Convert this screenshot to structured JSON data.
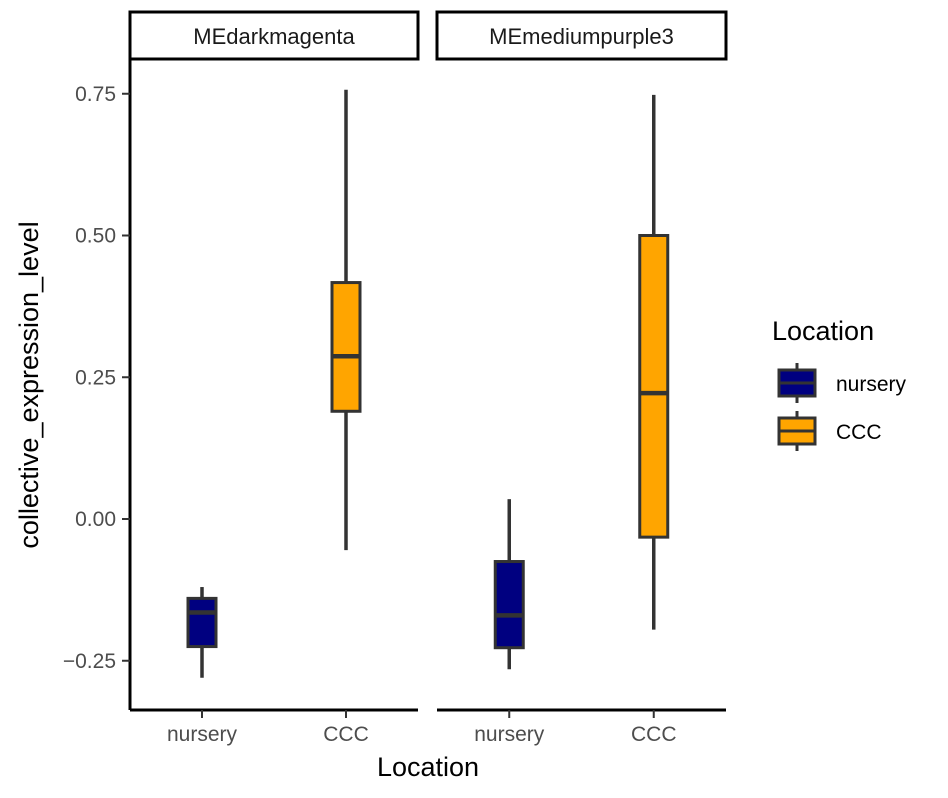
{
  "chart_data": {
    "type": "boxplot",
    "facets": [
      "MEdarkmagenta",
      "MEmediumpurple3"
    ],
    "categories": [
      "nursery",
      "CCC"
    ],
    "xlabel": "Location",
    "ylabel": "collective_expression_level",
    "ylim": [
      -0.31,
      0.8
    ],
    "yticks": [
      -0.25,
      0.0,
      0.25,
      0.5,
      0.75
    ],
    "ytick_labels": [
      "−0.25",
      "0.00",
      "0.25",
      "0.50",
      "0.75"
    ],
    "boxes": [
      {
        "facet": "MEdarkmagenta",
        "category": "nursery",
        "min": -0.28,
        "q1": -0.225,
        "median": -0.165,
        "q3": -0.14,
        "max": -0.12
      },
      {
        "facet": "MEdarkmagenta",
        "category": "CCC",
        "min": -0.055,
        "q1": 0.19,
        "median": 0.287,
        "q3": 0.417,
        "max": 0.757
      },
      {
        "facet": "MEmediumpurple3",
        "category": "nursery",
        "min": -0.265,
        "q1": -0.227,
        "median": -0.17,
        "q3": -0.075,
        "max": 0.035
      },
      {
        "facet": "MEmediumpurple3",
        "category": "CCC",
        "min": -0.195,
        "q1": -0.032,
        "median": 0.222,
        "q3": 0.5,
        "max": 0.748
      }
    ],
    "legend": {
      "title": "Location",
      "position": "right",
      "entries": [
        {
          "label": "nursery",
          "color": "#000080"
        },
        {
          "label": "CCC",
          "color": "#FFA500"
        }
      ]
    },
    "grid": false
  },
  "colors": {
    "nursery": "#000080",
    "CCC": "#FFA500",
    "box_outline": "#333333",
    "axis": "#000000"
  }
}
